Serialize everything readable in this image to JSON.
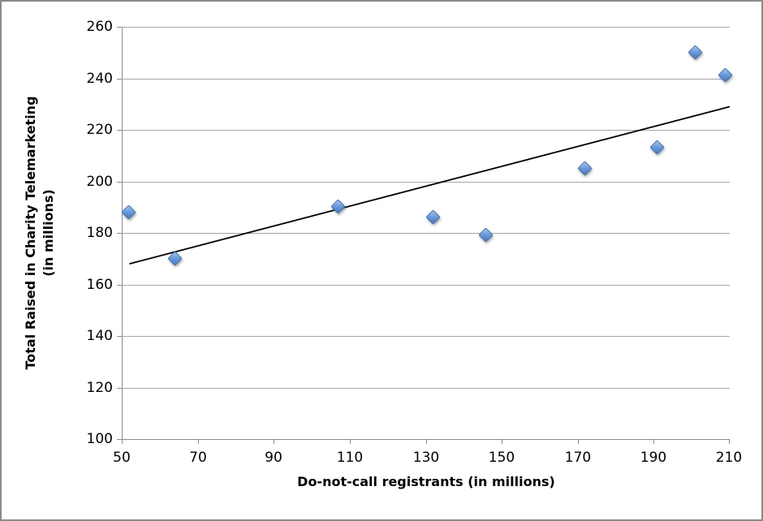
{
  "chart_data": {
    "type": "scatter",
    "title": "",
    "xlabel": "Do-not-call registrants (in millions)",
    "ylabel": "Total Raised in Charity Telemarketing (in millions)",
    "ylabel_lines": [
      "Total Raised in Charity Telemarketing",
      "(in millions)"
    ],
    "xlim": [
      50,
      210
    ],
    "ylim": [
      100,
      260
    ],
    "x_ticks": [
      50,
      70,
      90,
      110,
      130,
      150,
      170,
      190,
      210
    ],
    "y_ticks": [
      100,
      120,
      140,
      160,
      180,
      200,
      220,
      240,
      260
    ],
    "grid": "horizontal-only",
    "legend_position": "none",
    "series": [
      {
        "marker": "diamond",
        "points": [
          {
            "x": 52,
            "y": 188
          },
          {
            "x": 64,
            "y": 170
          },
          {
            "x": 107,
            "y": 190
          },
          {
            "x": 132,
            "y": 186
          },
          {
            "x": 146,
            "y": 179
          },
          {
            "x": 172,
            "y": 205
          },
          {
            "x": 191,
            "y": 213
          },
          {
            "x": 201,
            "y": 250
          },
          {
            "x": 209,
            "y": 241
          }
        ]
      }
    ],
    "trendline": {
      "type": "linear",
      "x_start": 52,
      "y_start": 168,
      "x_end": 210,
      "y_end": 229
    },
    "colors": {
      "marker_fill": "#6495d8",
      "marker_fill_light": "#a5c3ee",
      "marker_border": "#3f6cab",
      "gridline": "#a6a6a6",
      "axis": "#8c8c8c",
      "trendline": "#000000",
      "text": "#000000",
      "canvas_border": "#8a8a8a",
      "background": "#ffffff"
    }
  }
}
